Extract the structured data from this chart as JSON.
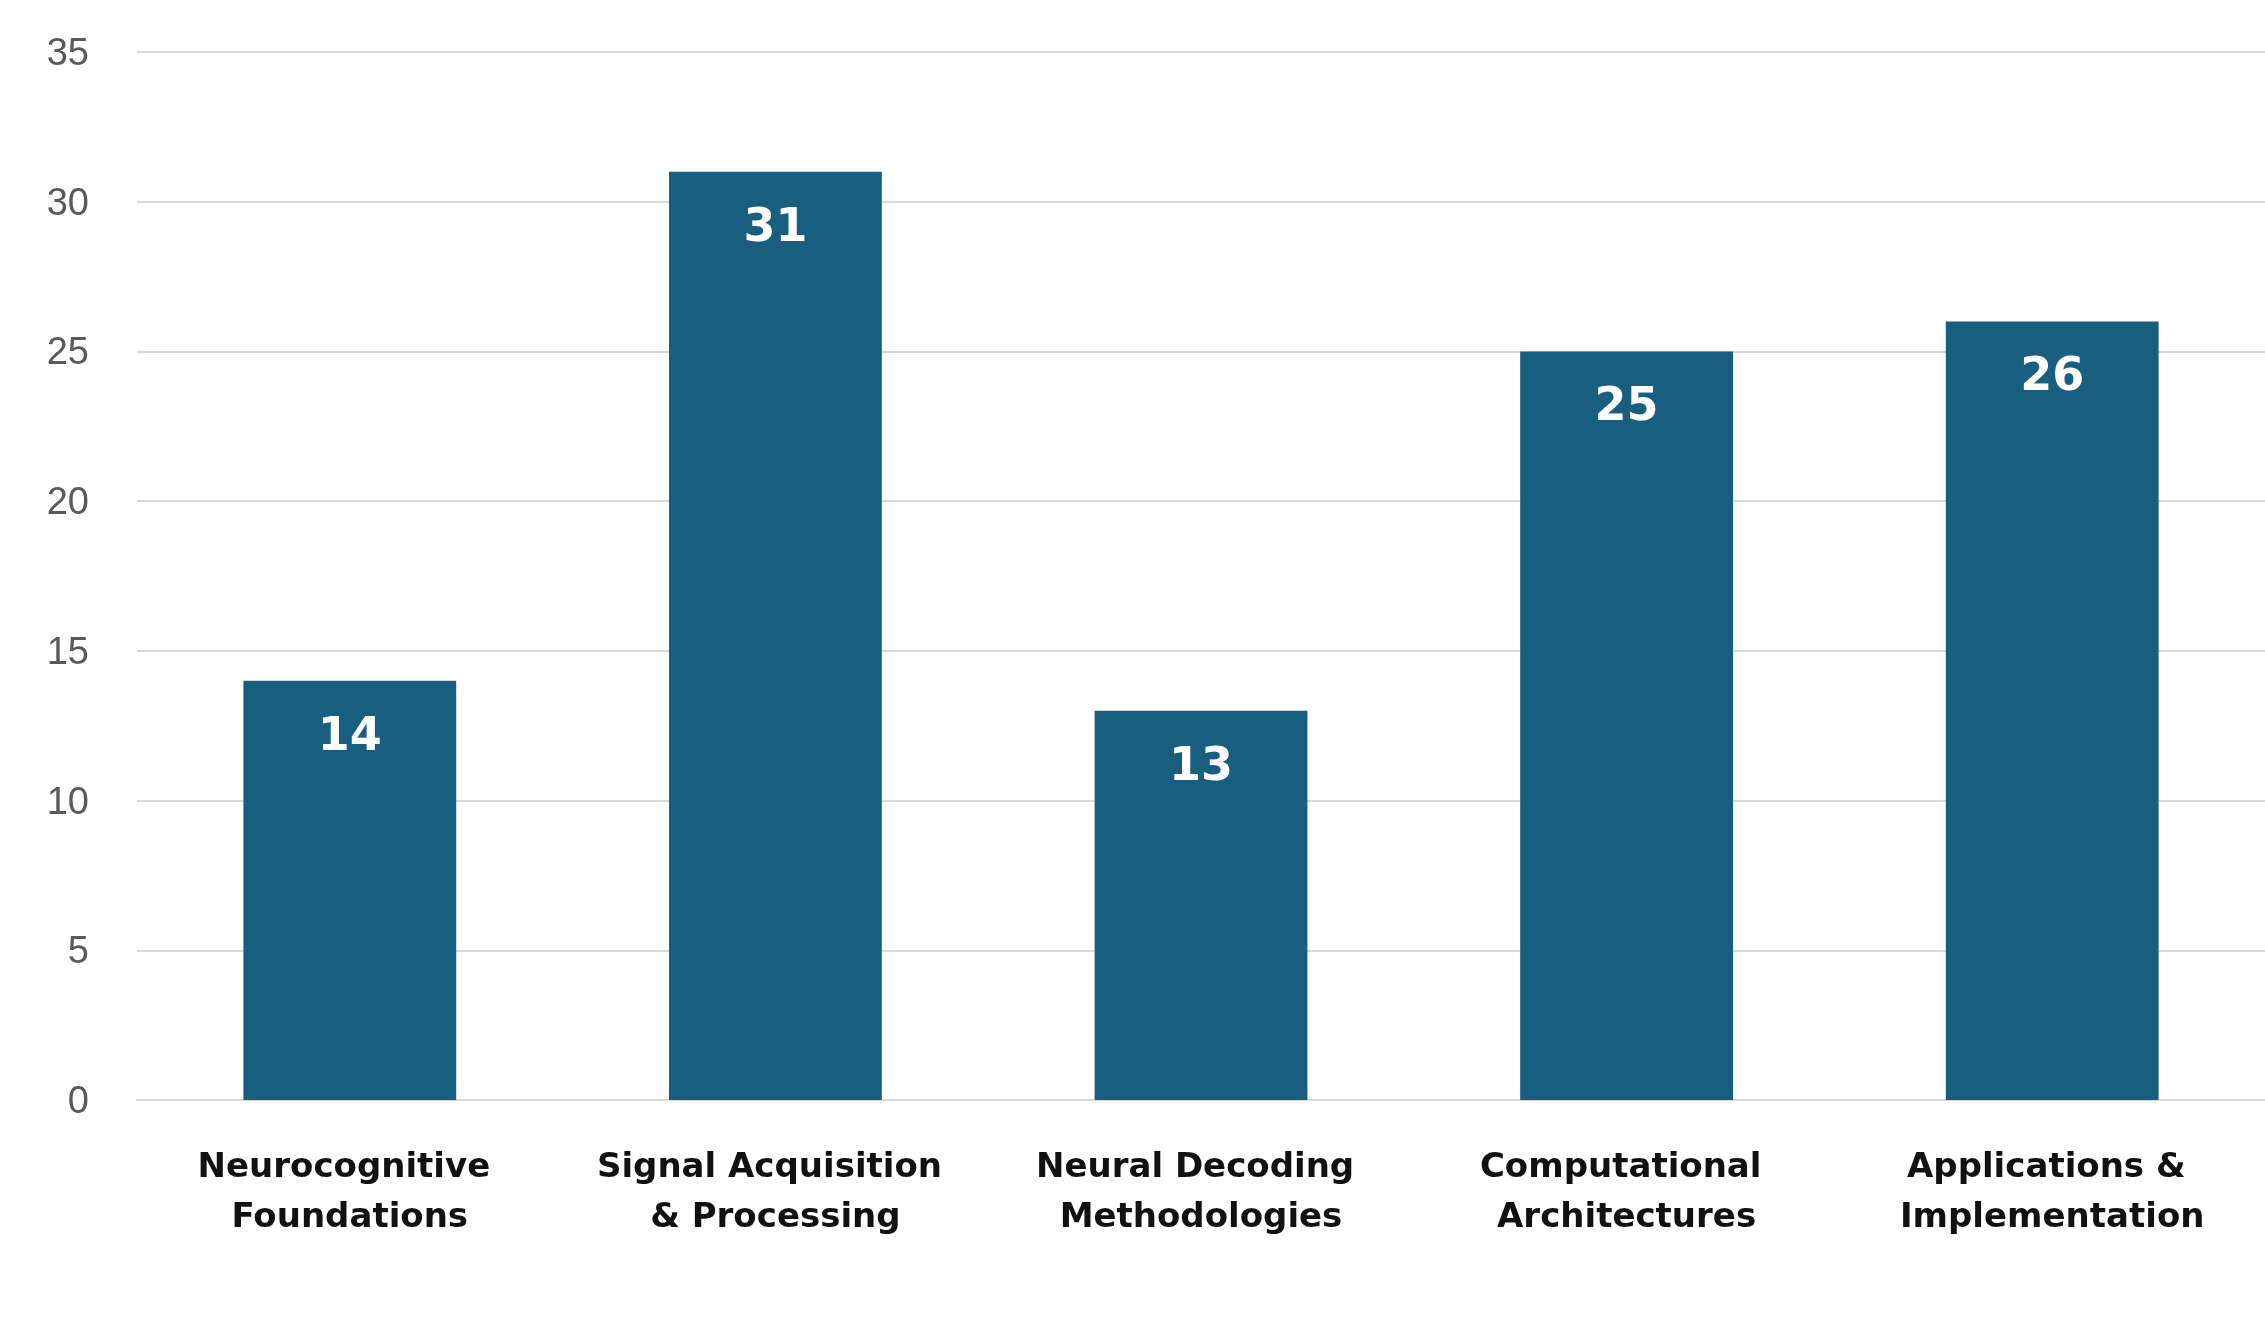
{
  "chart_data": {
    "type": "bar",
    "categories": [
      "Neurocognitive Foundations",
      "Signal Acquisition & Processing",
      "Neural Decoding Methodologies",
      "Computational Architectures",
      "Applications & Implementation"
    ],
    "values": [
      14,
      31,
      13,
      25,
      26
    ],
    "color": "#175e7f",
    "ylim": [
      0,
      35
    ],
    "yticks": [
      0,
      5,
      10,
      15,
      20,
      25,
      30,
      35
    ],
    "grid": "y",
    "data_labels": true
  }
}
